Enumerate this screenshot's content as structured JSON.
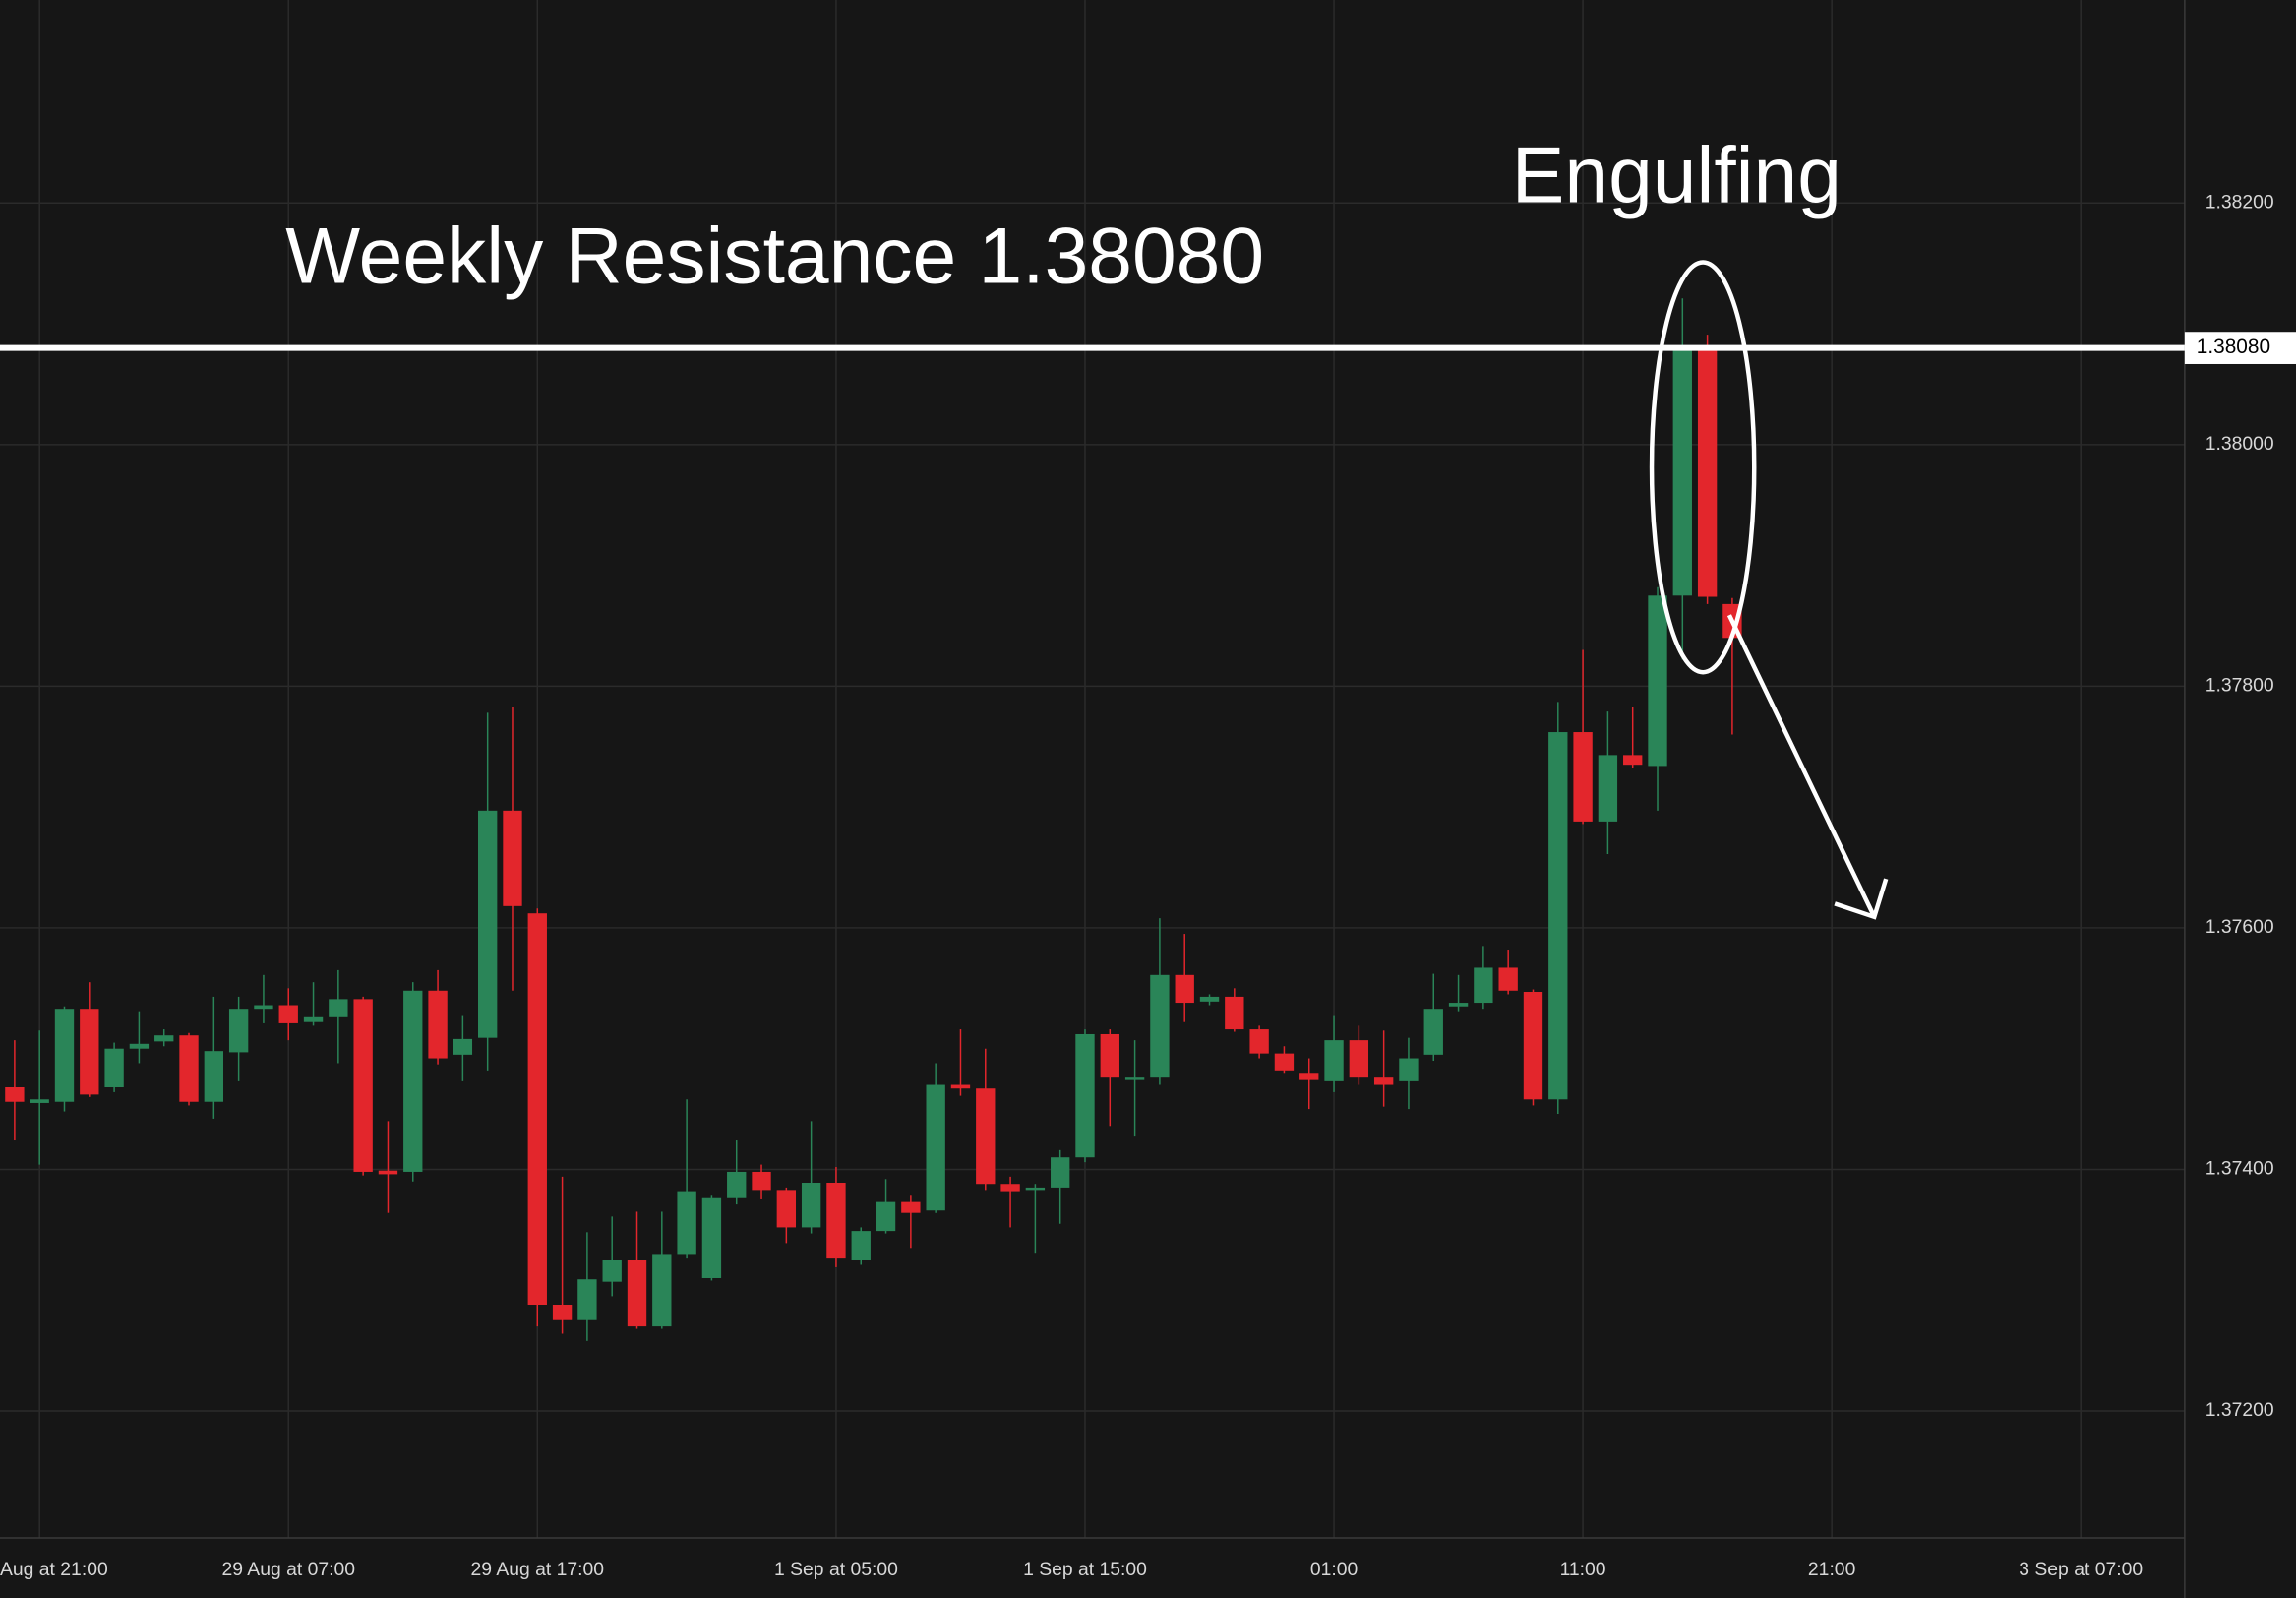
{
  "chart_data": {
    "type": "candlestick",
    "annotations": [
      "Weekly Resistance 1.38080",
      "Engulfing"
    ],
    "categories": [
      null,
      "Aug at 21:00",
      null,
      null,
      null,
      null,
      null,
      null,
      null,
      null,
      null,
      "29 Aug at 07:00",
      null,
      null,
      null,
      null,
      null,
      null,
      null,
      null,
      null,
      "29 Aug at 17:00",
      null,
      null,
      null,
      null,
      null,
      null,
      null,
      null,
      null,
      null,
      null,
      "1 Sep at 05:00",
      null,
      null,
      null,
      null,
      null,
      null,
      null,
      null,
      null,
      "1 Sep at 15:00",
      null,
      null,
      null,
      null,
      null,
      null,
      null,
      null,
      null,
      "01:00",
      null,
      null,
      null,
      null,
      null,
      null,
      null,
      null,
      null,
      "11:00",
      null,
      null,
      null,
      null,
      null,
      null,
      null,
      null,
      null,
      "21:00",
      null,
      null,
      null,
      null,
      null,
      null,
      null,
      null,
      null,
      "3 Sep at 07:00",
      null,
      null,
      null,
      null
    ],
    "open": [
      1.37468,
      1.37455,
      1.37456,
      1.37533,
      1.37468,
      1.375,
      1.37506,
      1.37511,
      1.37456,
      1.37497,
      1.37533,
      1.37536,
      1.37522,
      1.37526,
      1.37541,
      1.37399,
      1.37398,
      1.37548,
      1.37495,
      1.37509,
      1.37697,
      1.37612,
      1.37288,
      1.37276,
      1.37307,
      1.37325,
      1.3727,
      1.3733,
      1.3731,
      1.37377,
      1.37398,
      1.37383,
      1.37352,
      1.37389,
      1.37325,
      1.37349,
      1.37373,
      1.37366,
      1.3747,
      1.37467,
      1.37388,
      1.37383,
      1.37385,
      1.3741,
      1.37512,
      1.37474,
      1.37476,
      1.37561,
      1.37539,
      1.37543,
      1.37516,
      1.37496,
      1.3748,
      1.37473,
      1.37507,
      1.37476,
      1.37473,
      1.37495,
      1.37535,
      1.37538,
      1.37567,
      1.37547,
      1.37458,
      1.37762,
      1.37688,
      1.37743,
      1.37734,
      1.37875,
      1.38079,
      1.37868,
      null,
      null,
      null,
      null,
      null,
      null,
      null,
      null,
      null,
      null,
      null,
      null,
      null,
      null,
      null,
      null,
      null,
      null
    ],
    "high": [
      1.37507,
      1.37515,
      1.37535,
      1.37555,
      1.37505,
      1.37531,
      1.37516,
      1.37513,
      1.37543,
      1.37543,
      1.37561,
      1.3755,
      1.37555,
      1.37565,
      1.37543,
      1.3744,
      1.37555,
      1.37565,
      1.37527,
      1.37778,
      1.37783,
      1.37616,
      1.37394,
      1.37348,
      1.37361,
      1.37365,
      1.37365,
      1.37458,
      1.37379,
      1.37424,
      1.37404,
      1.37385,
      1.3744,
      1.37402,
      1.37352,
      1.37392,
      1.37379,
      1.37488,
      1.37516,
      1.375,
      1.37394,
      1.37388,
      1.37416,
      1.37516,
      1.37516,
      1.37507,
      1.37608,
      1.37595,
      1.37545,
      1.3755,
      1.37519,
      1.37502,
      1.37492,
      1.37527,
      1.37519,
      1.37515,
      1.37509,
      1.37562,
      1.37561,
      1.37585,
      1.37582,
      1.37549,
      1.37787,
      1.3783,
      1.37779,
      1.37783,
      1.37882,
      1.38121,
      1.38091,
      1.37873,
      null,
      null,
      null,
      null,
      null,
      null,
      null,
      null,
      null,
      null,
      null,
      null,
      null,
      null,
      null,
      null,
      null,
      null
    ],
    "low": [
      1.37424,
      1.37404,
      1.37448,
      1.3746,
      1.37464,
      1.37488,
      1.37502,
      1.37453,
      1.37442,
      1.37473,
      1.37521,
      1.37507,
      1.37519,
      1.37488,
      1.37395,
      1.37364,
      1.3739,
      1.37487,
      1.37473,
      1.37482,
      1.37548,
      1.3727,
      1.37264,
      1.37258,
      1.37295,
      1.37268,
      1.37268,
      1.37327,
      1.37308,
      1.37371,
      1.37376,
      1.37339,
      1.37347,
      1.37319,
      1.37321,
      1.37347,
      1.37335,
      1.37364,
      1.37461,
      1.37383,
      1.37352,
      1.37331,
      1.37355,
      1.37406,
      1.37436,
      1.37428,
      1.3747,
      1.37522,
      1.37536,
      1.37514,
      1.37492,
      1.3748,
      1.3745,
      1.37464,
      1.3747,
      1.37452,
      1.3745,
      1.3749,
      1.37531,
      1.37533,
      1.37545,
      1.37453,
      1.37446,
      1.37686,
      1.37661,
      1.37732,
      1.37697,
      1.37822,
      1.37868,
      1.3776,
      null,
      null,
      null,
      null,
      null,
      null,
      null,
      null,
      null,
      null,
      null,
      null,
      null,
      null,
      null,
      null,
      null,
      null
    ],
    "close": [
      1.37456,
      1.37458,
      1.37533,
      1.37462,
      1.375,
      1.37504,
      1.37511,
      1.37456,
      1.37498,
      1.37533,
      1.37536,
      1.37521,
      1.37526,
      1.37541,
      1.37398,
      1.37396,
      1.37548,
      1.37492,
      1.37508,
      1.37697,
      1.37618,
      1.37288,
      1.37276,
      1.37309,
      1.37325,
      1.3727,
      1.3733,
      1.37382,
      1.37377,
      1.37398,
      1.37383,
      1.37352,
      1.37389,
      1.37327,
      1.37349,
      1.37373,
      1.37364,
      1.3747,
      1.37467,
      1.37388,
      1.37382,
      1.37385,
      1.3741,
      1.37512,
      1.37476,
      1.37476,
      1.37561,
      1.37538,
      1.37543,
      1.37516,
      1.37496,
      1.37482,
      1.37474,
      1.37507,
      1.37476,
      1.3747,
      1.37492,
      1.37533,
      1.37538,
      1.37567,
      1.37548,
      1.37458,
      1.37762,
      1.37688,
      1.37743,
      1.37735,
      1.37875,
      1.38079,
      1.37874,
      1.3784,
      null,
      null,
      null,
      null,
      null,
      null,
      null,
      null,
      null,
      null,
      null,
      null,
      null,
      null,
      null,
      null,
      null,
      null
    ],
    "up_color": "#2a8558",
    "down_color": "#e3262c",
    "ylim": [
      1.37095,
      1.38368
    ],
    "yticks": [
      {
        "value": 1.372,
        "label": "1.37200"
      },
      {
        "value": 1.374,
        "label": "1.37400"
      },
      {
        "value": 1.376,
        "label": "1.37600"
      },
      {
        "value": 1.378,
        "label": "1.37800"
      },
      {
        "value": 1.38,
        "label": "1.38000"
      },
      {
        "value": 1.382,
        "label": "1.38200"
      }
    ],
    "hlines": [
      {
        "value": 1.3808,
        "label": "1.38080",
        "color": "#ffffff"
      }
    ],
    "grid": true
  }
}
